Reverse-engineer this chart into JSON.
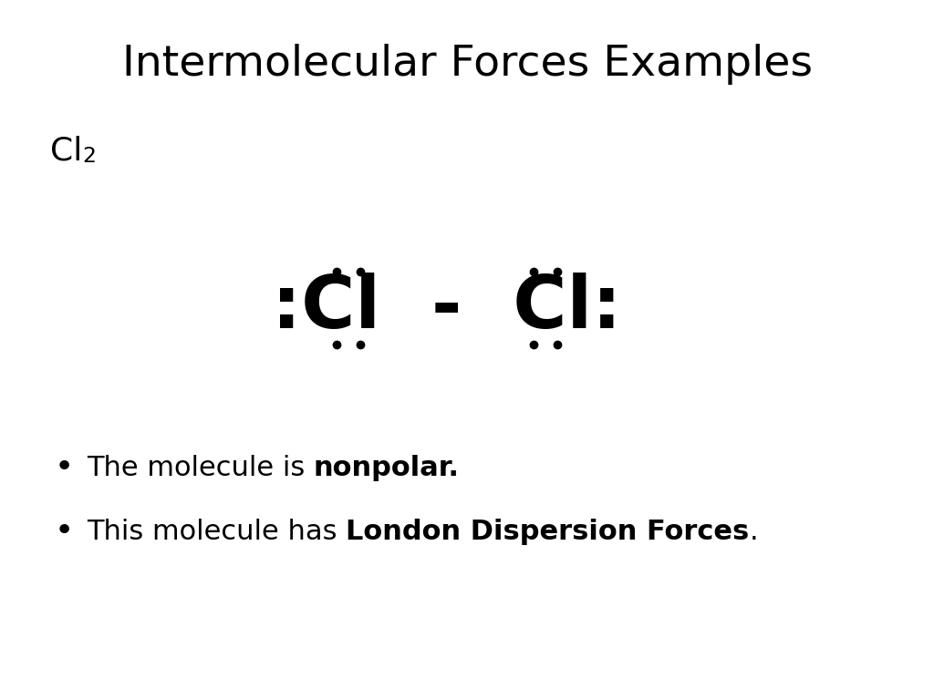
{
  "title": "Intermolecular Forces Examples",
  "title_fontsize": 34,
  "background_color": "#ffffff",
  "text_color": "#000000",
  "lewis_fontsize": 58,
  "bullet_fontsize": 22,
  "formula_fontsize": 26,
  "bullet1_normal": "The molecule is ",
  "bullet1_bold": "nonpolar.",
  "bullet2_normal": "This molecule has ",
  "bullet2_bold": "London Dispersion Forces",
  "bullet2_end": ".",
  "dot_color": "#000000",
  "dot_size": 6
}
